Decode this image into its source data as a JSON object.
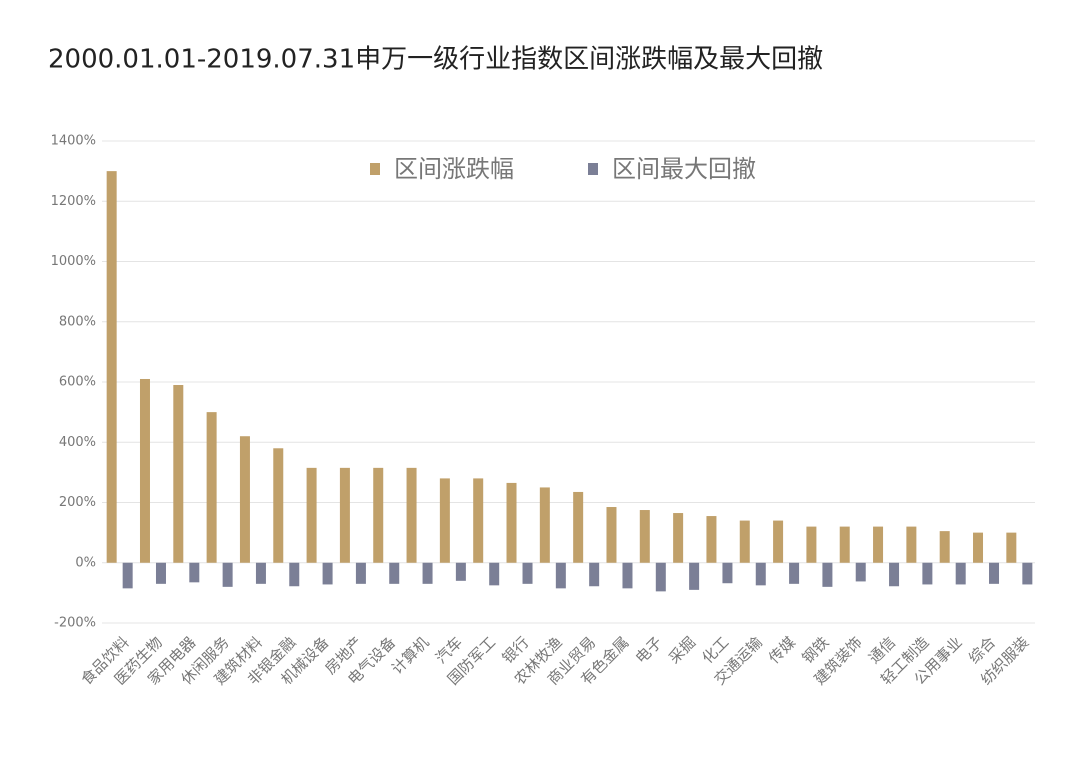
{
  "chart_data": {
    "type": "bar",
    "title": "2000.01.01-2019.07.31申万一级行业指数区间涨跌幅及最大回撤",
    "categories": [
      "食品饮料",
      "医药生物",
      "家用电器",
      "休闲服务",
      "建筑材料",
      "非银金融",
      "机械设备",
      "房地产",
      "电气设备",
      "计算机",
      "汽车",
      "国防军工",
      "银行",
      "农林牧渔",
      "商业贸易",
      "有色金属",
      "电子",
      "采掘",
      "化工",
      "交通运输",
      "传媒",
      "钢铁",
      "建筑装饰",
      "通信",
      "轻工制造",
      "公用事业",
      "综合",
      "纺织服装"
    ],
    "series": [
      {
        "name": "区间涨跌幅",
        "color": "#c0a06a",
        "values": [
          1300,
          610,
          590,
          500,
          420,
          380,
          315,
          315,
          315,
          315,
          280,
          280,
          265,
          250,
          235,
          185,
          175,
          165,
          155,
          140,
          140,
          120,
          120,
          120,
          120,
          105,
          100,
          100
        ]
      },
      {
        "name": "区间最大回撤",
        "color": "#7b7f96",
        "values": [
          -85,
          -70,
          -65,
          -80,
          -70,
          -78,
          -72,
          -70,
          -70,
          -70,
          -60,
          -75,
          -70,
          -85,
          -78,
          -85,
          -95,
          -90,
          -68,
          -75,
          -70,
          -80,
          -62,
          -78,
          -72,
          -72,
          -70,
          -72
        ]
      }
    ],
    "ylim": [
      -200,
      1400
    ],
    "yticks": [
      {
        "value": -200,
        "label": "-200%"
      },
      {
        "value": 0,
        "label": "0%"
      },
      {
        "value": 200,
        "label": "200%"
      },
      {
        "value": 400,
        "label": "400%"
      },
      {
        "value": 600,
        "label": "600%"
      },
      {
        "value": 800,
        "label": "800%"
      },
      {
        "value": 1000,
        "label": "1000%"
      },
      {
        "value": 1200,
        "label": "1200%"
      },
      {
        "value": 1400,
        "label": "1400%"
      }
    ],
    "grid": true,
    "legend": "top"
  }
}
